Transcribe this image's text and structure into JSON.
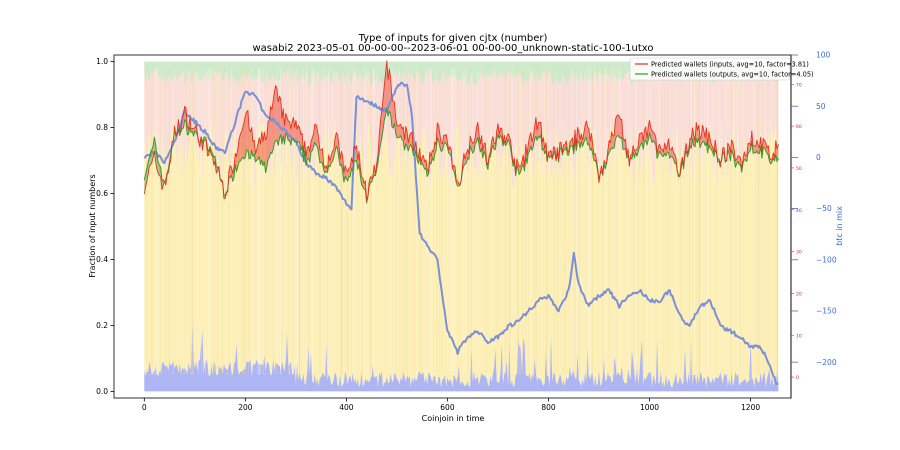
{
  "chart_data": {
    "type": "area",
    "title": "Type of inputs for given cjtx (number)",
    "subtitle": "wasabi2 2023-05-01 00-00-00--2023-06-01 00-00-00_unknown-static-100-1utxo",
    "xlabel": "Coinjoin in time",
    "ylabel": "Fraction of input numbers",
    "y2label": "btc in mix",
    "xlim": [
      -60,
      1280
    ],
    "ylim": [
      -0.02,
      1.02
    ],
    "y2lim": [
      -235,
      100
    ],
    "y3lim": [
      -5,
      77
    ],
    "x_ticks": [
      0,
      200,
      400,
      600,
      800,
      1000,
      1200
    ],
    "y_ticks": [
      0.0,
      0.2,
      0.4,
      0.6,
      0.8,
      1.0
    ],
    "y2_ticks": [
      100,
      50,
      0,
      -50,
      -100,
      -150,
      -200
    ],
    "y3_ticks": [
      0,
      10,
      20,
      30,
      40,
      50,
      60,
      70
    ],
    "legend_position": "top-right",
    "grid": false,
    "colors": {
      "wallets_inputs": "#e8321e",
      "wallets_outputs": "#3a9a2a",
      "btc_in_mix": "#7b8fd6",
      "stack_bottom": "#9aa2f0",
      "stack_middle": "#fbeaa0",
      "stack_upper": "#f7c9c0",
      "stack_top": "#a8d8a0",
      "right_axis_blue": "#3d6fc9",
      "right_axis_red": "#d62728"
    },
    "series": [
      {
        "name": "Predicted wallets (inputs, avg=10, factor=3.81)",
        "axis": "y3",
        "x": [
          0,
          20,
          40,
          60,
          80,
          100,
          120,
          140,
          160,
          180,
          200,
          220,
          240,
          260,
          280,
          300,
          320,
          340,
          360,
          380,
          400,
          420,
          440,
          460,
          480,
          500,
          520,
          540,
          560,
          580,
          600,
          620,
          640,
          660,
          680,
          700,
          720,
          740,
          760,
          780,
          800,
          820,
          840,
          860,
          880,
          900,
          920,
          940,
          960,
          980,
          1000,
          1020,
          1040,
          1060,
          1080,
          1100,
          1120,
          1140,
          1160,
          1180,
          1200,
          1220,
          1240,
          1255
        ],
        "values": [
          46,
          52,
          45,
          58,
          63,
          59,
          55,
          51,
          44,
          53,
          64,
          54,
          58,
          68,
          61,
          60,
          54,
          59,
          51,
          57,
          48,
          55,
          44,
          50,
          75,
          61,
          58,
          55,
          49,
          59,
          56,
          46,
          55,
          60,
          52,
          59,
          57,
          49,
          55,
          62,
          52,
          54,
          55,
          58,
          60,
          48,
          55,
          63,
          52,
          56,
          60,
          54,
          55,
          48,
          58,
          59,
          57,
          52,
          55,
          51,
          57,
          56,
          53,
          55
        ]
      },
      {
        "name": "Predicted wallets (outputs, avg=10, factor=4.05)",
        "axis": "y3",
        "x": [
          0,
          20,
          40,
          60,
          80,
          100,
          120,
          140,
          160,
          180,
          200,
          220,
          240,
          260,
          280,
          300,
          320,
          340,
          360,
          380,
          400,
          420,
          440,
          460,
          480,
          500,
          520,
          540,
          560,
          580,
          600,
          620,
          640,
          660,
          680,
          700,
          720,
          740,
          760,
          780,
          800,
          820,
          840,
          860,
          880,
          900,
          920,
          940,
          960,
          980,
          1000,
          1020,
          1040,
          1060,
          1080,
          1100,
          1120,
          1140,
          1160,
          1180,
          1200,
          1220,
          1240,
          1255
        ],
        "values": [
          48,
          56,
          46,
          58,
          60,
          58,
          56,
          52,
          44,
          50,
          54,
          52,
          50,
          56,
          57,
          56,
          52,
          55,
          49,
          54,
          46,
          52,
          43,
          49,
          64,
          58,
          55,
          53,
          48,
          56,
          55,
          45,
          53,
          57,
          51,
          57,
          56,
          48,
          53,
          58,
          52,
          53,
          54,
          56,
          56,
          48,
          53,
          58,
          52,
          54,
          57,
          53,
          53,
          48,
          56,
          56,
          55,
          52,
          53,
          50,
          55,
          54,
          52,
          52
        ]
      },
      {
        "name": "btc in mix",
        "axis": "y2",
        "x": [
          0,
          20,
          40,
          60,
          80,
          100,
          120,
          140,
          160,
          180,
          200,
          220,
          240,
          260,
          280,
          300,
          320,
          340,
          360,
          380,
          400,
          410,
          420,
          440,
          460,
          480,
          500,
          520,
          530,
          545,
          560,
          580,
          600,
          620,
          640,
          660,
          680,
          700,
          720,
          740,
          760,
          780,
          800,
          820,
          840,
          850,
          860,
          880,
          900,
          920,
          940,
          960,
          980,
          1000,
          1020,
          1040,
          1060,
          1080,
          1100,
          1120,
          1140,
          1160,
          1180,
          1200,
          1220,
          1240,
          1250
        ],
        "values": [
          0,
          5,
          -5,
          15,
          45,
          35,
          25,
          10,
          5,
          35,
          65,
          60,
          40,
          35,
          25,
          15,
          -5,
          -15,
          -20,
          -30,
          -45,
          -50,
          60,
          55,
          50,
          45,
          70,
          72,
          40,
          -75,
          -85,
          -100,
          -170,
          -190,
          -175,
          -170,
          -180,
          -175,
          -165,
          -160,
          -150,
          -140,
          -135,
          -150,
          -130,
          -93,
          -125,
          -145,
          -135,
          -130,
          -145,
          -135,
          -130,
          -140,
          -140,
          -130,
          -155,
          -165,
          -145,
          -140,
          -165,
          -170,
          -175,
          -185,
          -185,
          -205,
          -220
        ]
      }
    ]
  }
}
